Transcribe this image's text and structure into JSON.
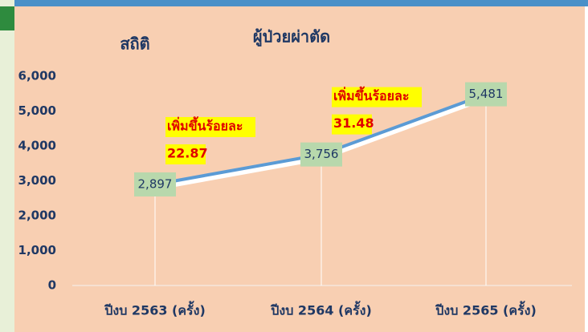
{
  "chart_data": {
    "type": "line",
    "title": "ผู้ป่วยผ่าตัด",
    "subtitle": "สถิติ",
    "categories": [
      "ปีงบ 2563 (ครั้ง)",
      "ปีงบ 2564 (ครั้ง)",
      "ปีงบ 2565 (ครั้ง)"
    ],
    "values": [
      2897,
      3756,
      5481
    ],
    "value_labels": [
      "2,897",
      "3,756",
      "5,481"
    ],
    "color": "#5b9bd5",
    "ylim": [
      0,
      6000
    ],
    "yticks": [
      0,
      {
        "value": 1000,
        "label": "1,000"
      },
      {
        "value": 2000,
        "label": "2,000"
      },
      {
        "value": 3000,
        "label": "3,000"
      },
      {
        "value": 4000,
        "label": "4,000"
      },
      {
        "value": 5000,
        "label": "5,000"
      },
      {
        "value": 6000,
        "label": "6,000"
      }
    ],
    "annotations": [
      {
        "label": "เพิ่มขึ้นร้อยละ",
        "value": 22.87
      },
      {
        "label": "เพิ่มขึ้นร้อยละ",
        "value": 31.48
      }
    ]
  }
}
